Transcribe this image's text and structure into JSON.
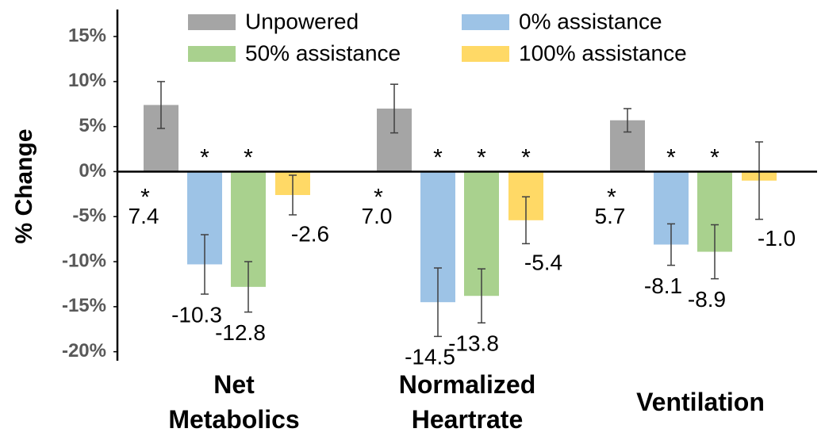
{
  "chart_data": {
    "type": "bar",
    "y_label": "% Change",
    "categories": [
      "Net Metabolics",
      "Normalized Heartrate",
      "Ventilation"
    ],
    "ylim": [
      -21,
      18
    ],
    "yticks": [
      {
        "value": -20,
        "label": "-20%"
      },
      {
        "value": -15,
        "label": "-15%"
      },
      {
        "value": -10,
        "label": "-10%"
      },
      {
        "value": -5,
        "label": "-5%"
      },
      {
        "value": 0,
        "label": "0%"
      },
      {
        "value": 5,
        "label": "5%"
      },
      {
        "value": 10,
        "label": "10%"
      },
      {
        "value": 15,
        "label": "15%"
      }
    ],
    "grid": false,
    "legend": "top",
    "series": [
      {
        "name": "Unpowered",
        "color": "#a5a5a5",
        "values": [
          7.4,
          7.0,
          5.7
        ],
        "value_labels": [
          "7.4",
          "7.0",
          "5.7"
        ],
        "errors": [
          2.6,
          2.7,
          1.3
        ],
        "markers": [
          "*",
          "*",
          "*"
        ]
      },
      {
        "name": "0% assistance",
        "color": "#9dc3e6",
        "values": [
          -10.3,
          -14.5,
          -8.1
        ],
        "value_labels": [
          "-10.3",
          "-14.5",
          "-8.1"
        ],
        "errors": [
          3.3,
          3.8,
          2.3
        ],
        "markers": [
          "*",
          "*",
          "*"
        ]
      },
      {
        "name": "50% assistance",
        "color": "#a9d18e",
        "values": [
          -12.8,
          -13.8,
          -8.9
        ],
        "value_labels": [
          "-12.8",
          "-13.8",
          "-8.9"
        ],
        "errors": [
          2.8,
          3.0,
          3.0
        ],
        "markers": [
          "*",
          "*",
          "*"
        ]
      },
      {
        "name": "100% assistance",
        "color": "#ffd966",
        "values": [
          -2.6,
          -5.4,
          -1.0
        ],
        "value_labels": [
          "-2.6",
          "-5.4",
          "-1.0"
        ],
        "errors": [
          2.2,
          2.6,
          4.3
        ],
        "markers": [
          null,
          "*",
          null
        ]
      }
    ]
  }
}
